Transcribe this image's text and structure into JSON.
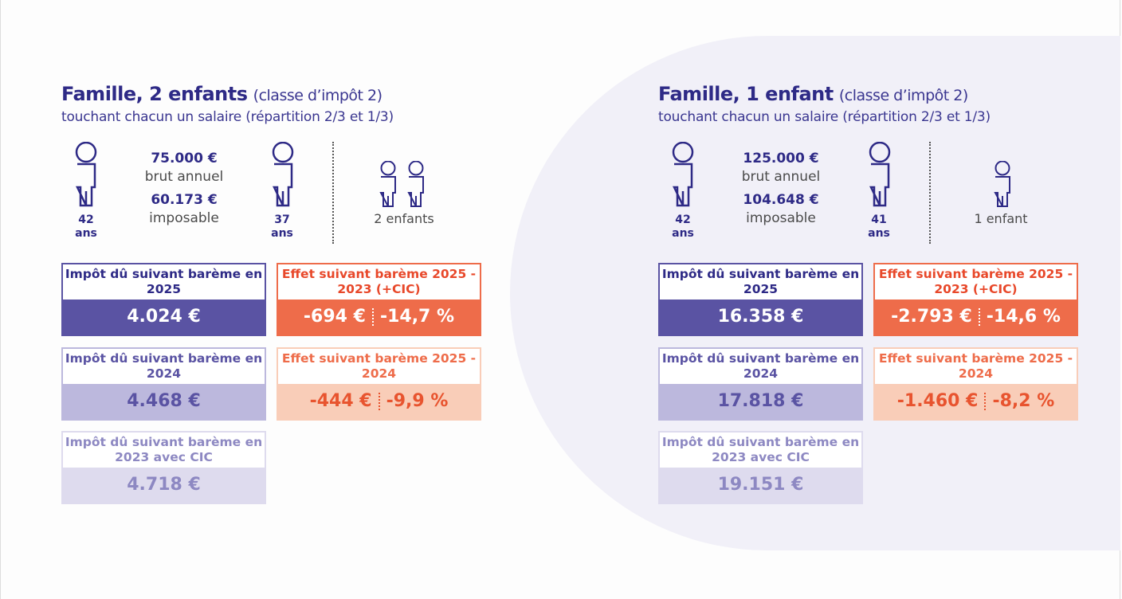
{
  "colors": {
    "primary": "#5a53a3",
    "title": "#2e2a86",
    "accent": "#ee6c4a",
    "light_accent": "#f9cdb8",
    "light_primary": "#bcb8dd",
    "lighter_primary": "#dedbee"
  },
  "panels": [
    {
      "title": "Famille, 2 enfants",
      "title_note": "(classe d’impôt 2)",
      "subtitle": "touchant chacun un salaire (répartition 2/3 et 1/3)",
      "adult1_age": "42",
      "adult2_age": "37",
      "age_unit": "ans",
      "gross": "75.000 €",
      "gross_label": "brut annuel",
      "taxable": "60.173 €",
      "taxable_label": "imposable",
      "children_label": "2 enfants",
      "tax_2025_label": "Impôt dû suivant barème en 2025",
      "tax_2025": "4.024 €",
      "tax_2024_label": "Impôt dû suivant barème en 2024",
      "tax_2024": "4.468 €",
      "tax_2023_label": "Impôt dû suivant barème en 2023 avec CIC",
      "tax_2023": "4.718 €",
      "effect_2023_label": "Effet suivant barème 2025 - 2023 (+CIC)",
      "effect_2023_abs": "-694 €",
      "effect_2023_pct": "-14,7 %",
      "effect_2024_label": "Effet suivant barème 2025 - 2024",
      "effect_2024_abs": "-444 €",
      "effect_2024_pct": "-9,9 %"
    },
    {
      "title": "Famille, 1 enfant",
      "title_note": "(classe d’impôt 2)",
      "subtitle": "touchant chacun un salaire (répartition 2/3 et 1/3)",
      "adult1_age": "42",
      "adult2_age": "41",
      "age_unit": "ans",
      "gross": "125.000 €",
      "gross_label": "brut annuel",
      "taxable": "104.648 €",
      "taxable_label": "imposable",
      "children_label": "1 enfant",
      "tax_2025_label": "Impôt dû suivant barème en 2025",
      "tax_2025": "16.358 €",
      "tax_2024_label": "Impôt dû suivant barème en 2024",
      "tax_2024": "17.818 €",
      "tax_2023_label": "Impôt dû suivant barème en 2023 avec CIC",
      "tax_2023": "19.151 €",
      "effect_2023_label": "Effet suivant barème 2025 - 2023 (+CIC)",
      "effect_2023_abs": "-2.793 €",
      "effect_2023_pct": "-14,6 %",
      "effect_2024_label": "Effet suivant barème 2025 - 2024",
      "effect_2024_abs": "-1.460 €",
      "effect_2024_pct": "-8,2 %"
    }
  ]
}
